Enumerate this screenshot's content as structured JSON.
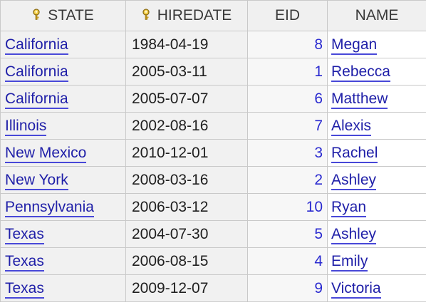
{
  "columns": [
    {
      "label": "STATE",
      "key": true,
      "icon": "key-icon"
    },
    {
      "label": "HIREDATE",
      "key": true,
      "icon": "key-icon"
    },
    {
      "label": "EID",
      "key": false
    },
    {
      "label": "NAME",
      "key": false
    }
  ],
  "rows": [
    {
      "state": "California",
      "hiredate": "1984-04-19",
      "eid": "8",
      "name": "Megan"
    },
    {
      "state": "California",
      "hiredate": "2005-03-11",
      "eid": "1",
      "name": "Rebecca"
    },
    {
      "state": "California",
      "hiredate": "2005-07-07",
      "eid": "6",
      "name": "Matthew"
    },
    {
      "state": "Illinois",
      "hiredate": "2002-08-16",
      "eid": "7",
      "name": "Alexis"
    },
    {
      "state": "New Mexico",
      "hiredate": "2010-12-01",
      "eid": "3",
      "name": "Rachel"
    },
    {
      "state": "New York",
      "hiredate": "2008-03-16",
      "eid": "2",
      "name": "Ashley"
    },
    {
      "state": "Pennsylvania",
      "hiredate": "2006-03-12",
      "eid": "10",
      "name": "Ryan"
    },
    {
      "state": "Texas",
      "hiredate": "2004-07-30",
      "eid": "5",
      "name": "Ashley"
    },
    {
      "state": "Texas",
      "hiredate": "2006-08-15",
      "eid": "4",
      "name": "Emily"
    },
    {
      "state": "Texas",
      "hiredate": "2009-12-07",
      "eid": "9",
      "name": "Victoria"
    }
  ],
  "colors": {
    "link": "#1f1fa8",
    "link_underline": "#4848d8",
    "number": "#2a2ad0",
    "header_bg": "#f0f0f0",
    "key_icon": "#c79a1a"
  }
}
